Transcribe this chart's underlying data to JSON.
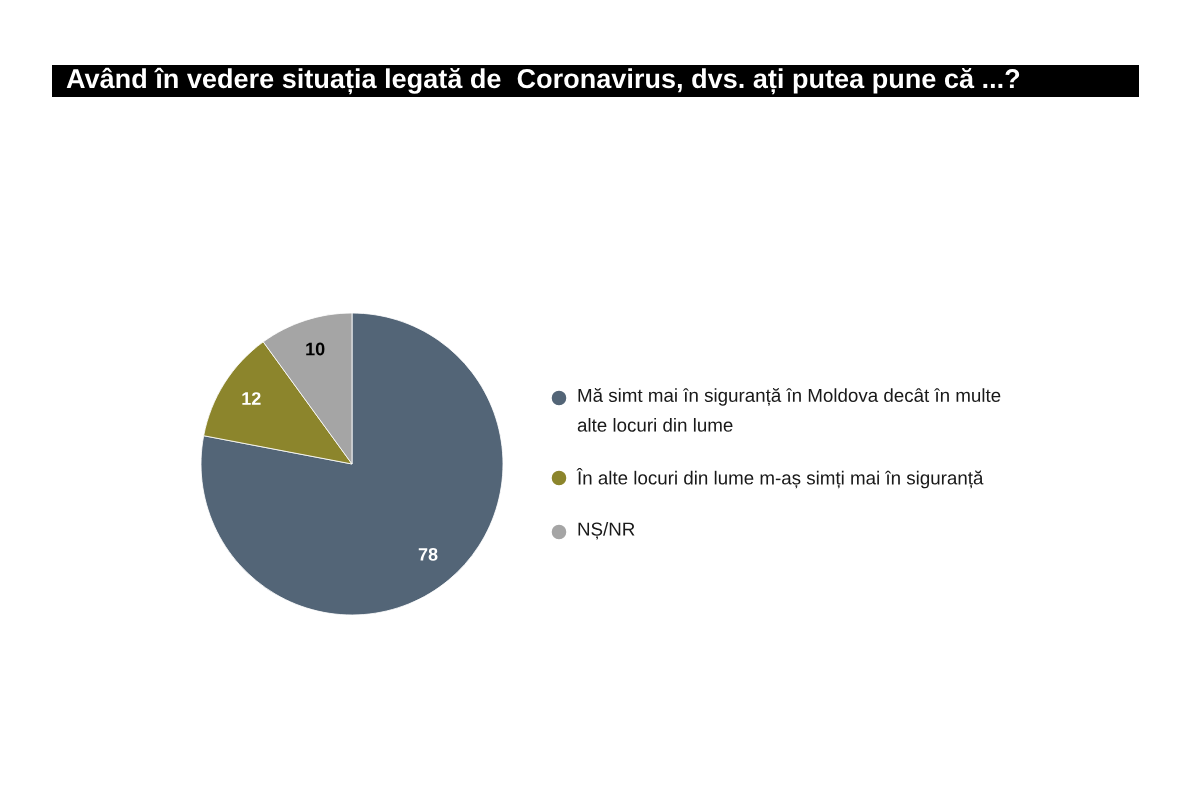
{
  "chart_data": {
    "type": "pie",
    "title": "Având în vedere situația legată de  Coronavirus, dvs. ați putea pune că ...?",
    "categories": [
      "Mă simt mai în siguranță în Moldova decât în multe alte locuri din lume",
      "În alte locuri din lume m-aș simți mai în siguranță",
      "NȘ/NR"
    ],
    "values": [
      78,
      12,
      10
    ],
    "colors": [
      "#536577",
      "#8c852c",
      "#a5a5a5"
    ],
    "data_labels": true,
    "legend": "right"
  }
}
